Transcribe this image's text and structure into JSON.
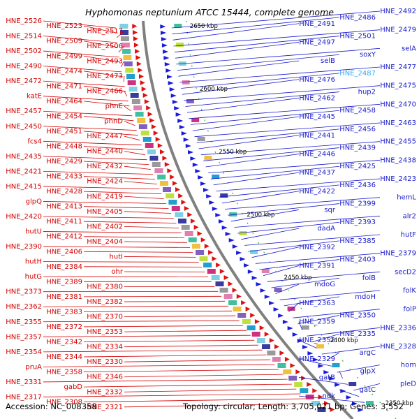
{
  "title": "Hyphomonas neptunium ATCC 15444, complete genome",
  "accession": "Accession: NC_008358",
  "topology": "Topology: circular; Length: 3,705,021 bp; Genes: 3,552",
  "colors": {
    "left_labels": "#d40000",
    "right_labels": "#1a1acc",
    "highlight": "#33aaff",
    "backbone": "#808080"
  },
  "scale_marks": [
    "2650 kbp",
    "2600 kbp",
    "2550 kbp",
    "2500 kbp",
    "2450 kbp",
    "2400 kbp",
    "2350 kbp"
  ],
  "left_genes": [
    "HNE_2526",
    "HNE_2523",
    "HNE_2517",
    "HNE_2514",
    "HNE_2509",
    "HNE_2506",
    "HNE_2502",
    "HNE_2499",
    "HNE_2493",
    "HNE_2490",
    "HNE_2474",
    "HNE_2473",
    "HNE_2472",
    "HNE_2471",
    "HNE_2466",
    "katE",
    "HNE_2464",
    "phnE",
    "HNE_2457",
    "HNE_2454",
    "phnD",
    "HNE_2450",
    "HNE_2451",
    "HNE_2447",
    "fcs4",
    "HNE_2448",
    "HNE_2440",
    "HNE_2435",
    "HNE_2429",
    "HNE_2432",
    "HNE_2421",
    "HNE_2433",
    "HNE_2424",
    "HNE_2415",
    "HNE_2428",
    "HNE_2419",
    "glpQ",
    "HNE_2413",
    "HNE_2405",
    "HNE_2420",
    "HNE_2411",
    "HNE_2402",
    "hutU",
    "HNE_2412",
    "HNE_2404",
    "HNE_2390",
    "HNE_2406",
    "hutI",
    "hutH",
    "HNE_2384",
    "ohr",
    "hutG",
    "HNE_2389",
    "HNE_2380",
    "HNE_2373",
    "HNE_2381",
    "HNE_2382",
    "HNE_2362",
    "HNE_2383",
    "HNE_2370",
    "HNE_2355",
    "HNE_2372",
    "HNE_2353",
    "HNE_2357",
    "HNE_2342",
    "HNE_2334",
    "HNE_2354",
    "HNE_2344",
    "HNE_2330",
    "pruA",
    "HNE_2358",
    "HNE_2346",
    "HNE_2331",
    "gabD",
    "HNE_2332",
    "HNE_2317",
    "HNE_2308",
    "HNE_2321"
  ],
  "right_genes": [
    "HNE_2492",
    "HNE_2486",
    "HNE_2491",
    "HNE_2479",
    "HNE_2501",
    "HNE_2497",
    "selA",
    "soxY",
    "selB",
    "HNE_2477",
    "HNE_2487",
    "HNE_2476",
    "HNE_2475",
    "hup2",
    "HNE_2462",
    "HNE_2470",
    "HNE_2458",
    "HNE_2445",
    "HNE_2463",
    "HNE_2456",
    "HNE_2441",
    "HNE_2455",
    "HNE_2439",
    "HNE_2446",
    "HNE_2438",
    "HNE_2425",
    "HNE_2437",
    "HNE_2423",
    "HNE_2436",
    "HNE_2422",
    "hemL",
    "HNE_2399",
    "sqr",
    "alr2",
    "HNE_2393",
    "dadA",
    "hutF",
    "HNE_2385",
    "HNE_2392",
    "HNE_2379",
    "HNE_2403",
    "HNE_2391",
    "secD2",
    "folB",
    "mdoG",
    "folK",
    "mdoH",
    "HNE_2363",
    "folP",
    "HNE_2350",
    "HNE_2359",
    "HNE_2336",
    "HNE_2335",
    "HNE_2352",
    "HNE_2328",
    "argC",
    "HNE_2329",
    "hom",
    "glpX",
    "gatB",
    "pleD",
    "gatC",
    "ndk"
  ]
}
